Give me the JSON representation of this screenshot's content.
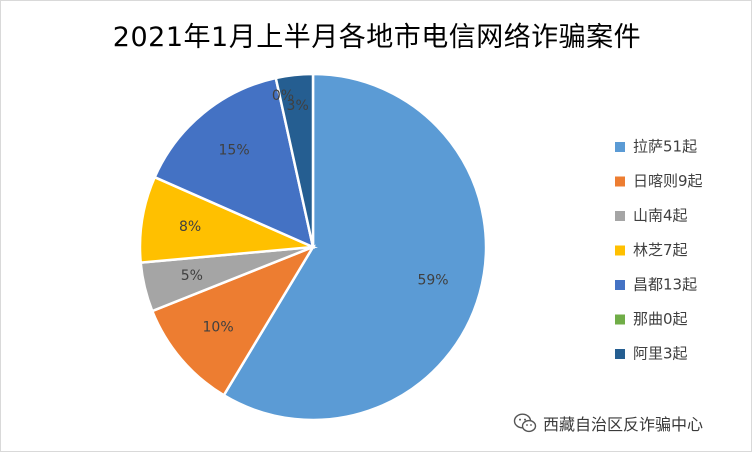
{
  "chart_data": {
    "type": "pie",
    "title": "2021年1月上半月各地市电信网络诈骗案件",
    "categories": [
      "拉萨51起",
      "日喀则9起",
      "山南4起",
      "林芝7起",
      "昌都13起",
      "那曲0起",
      "阿里3起"
    ],
    "values": [
      51,
      9,
      4,
      7,
      13,
      0,
      3
    ],
    "percent_labels": [
      "59%",
      "10%",
      "5%",
      "8%",
      "15%",
      "0%",
      "3%"
    ],
    "colors": [
      "#5b9bd5",
      "#ed7d31",
      "#a5a5a5",
      "#ffc000",
      "#4472c4",
      "#70ad47",
      "#255e91"
    ],
    "legend_position": "right"
  },
  "watermark": {
    "text": "西藏自治区反诈骗中心",
    "icon": "wechat-icon"
  }
}
